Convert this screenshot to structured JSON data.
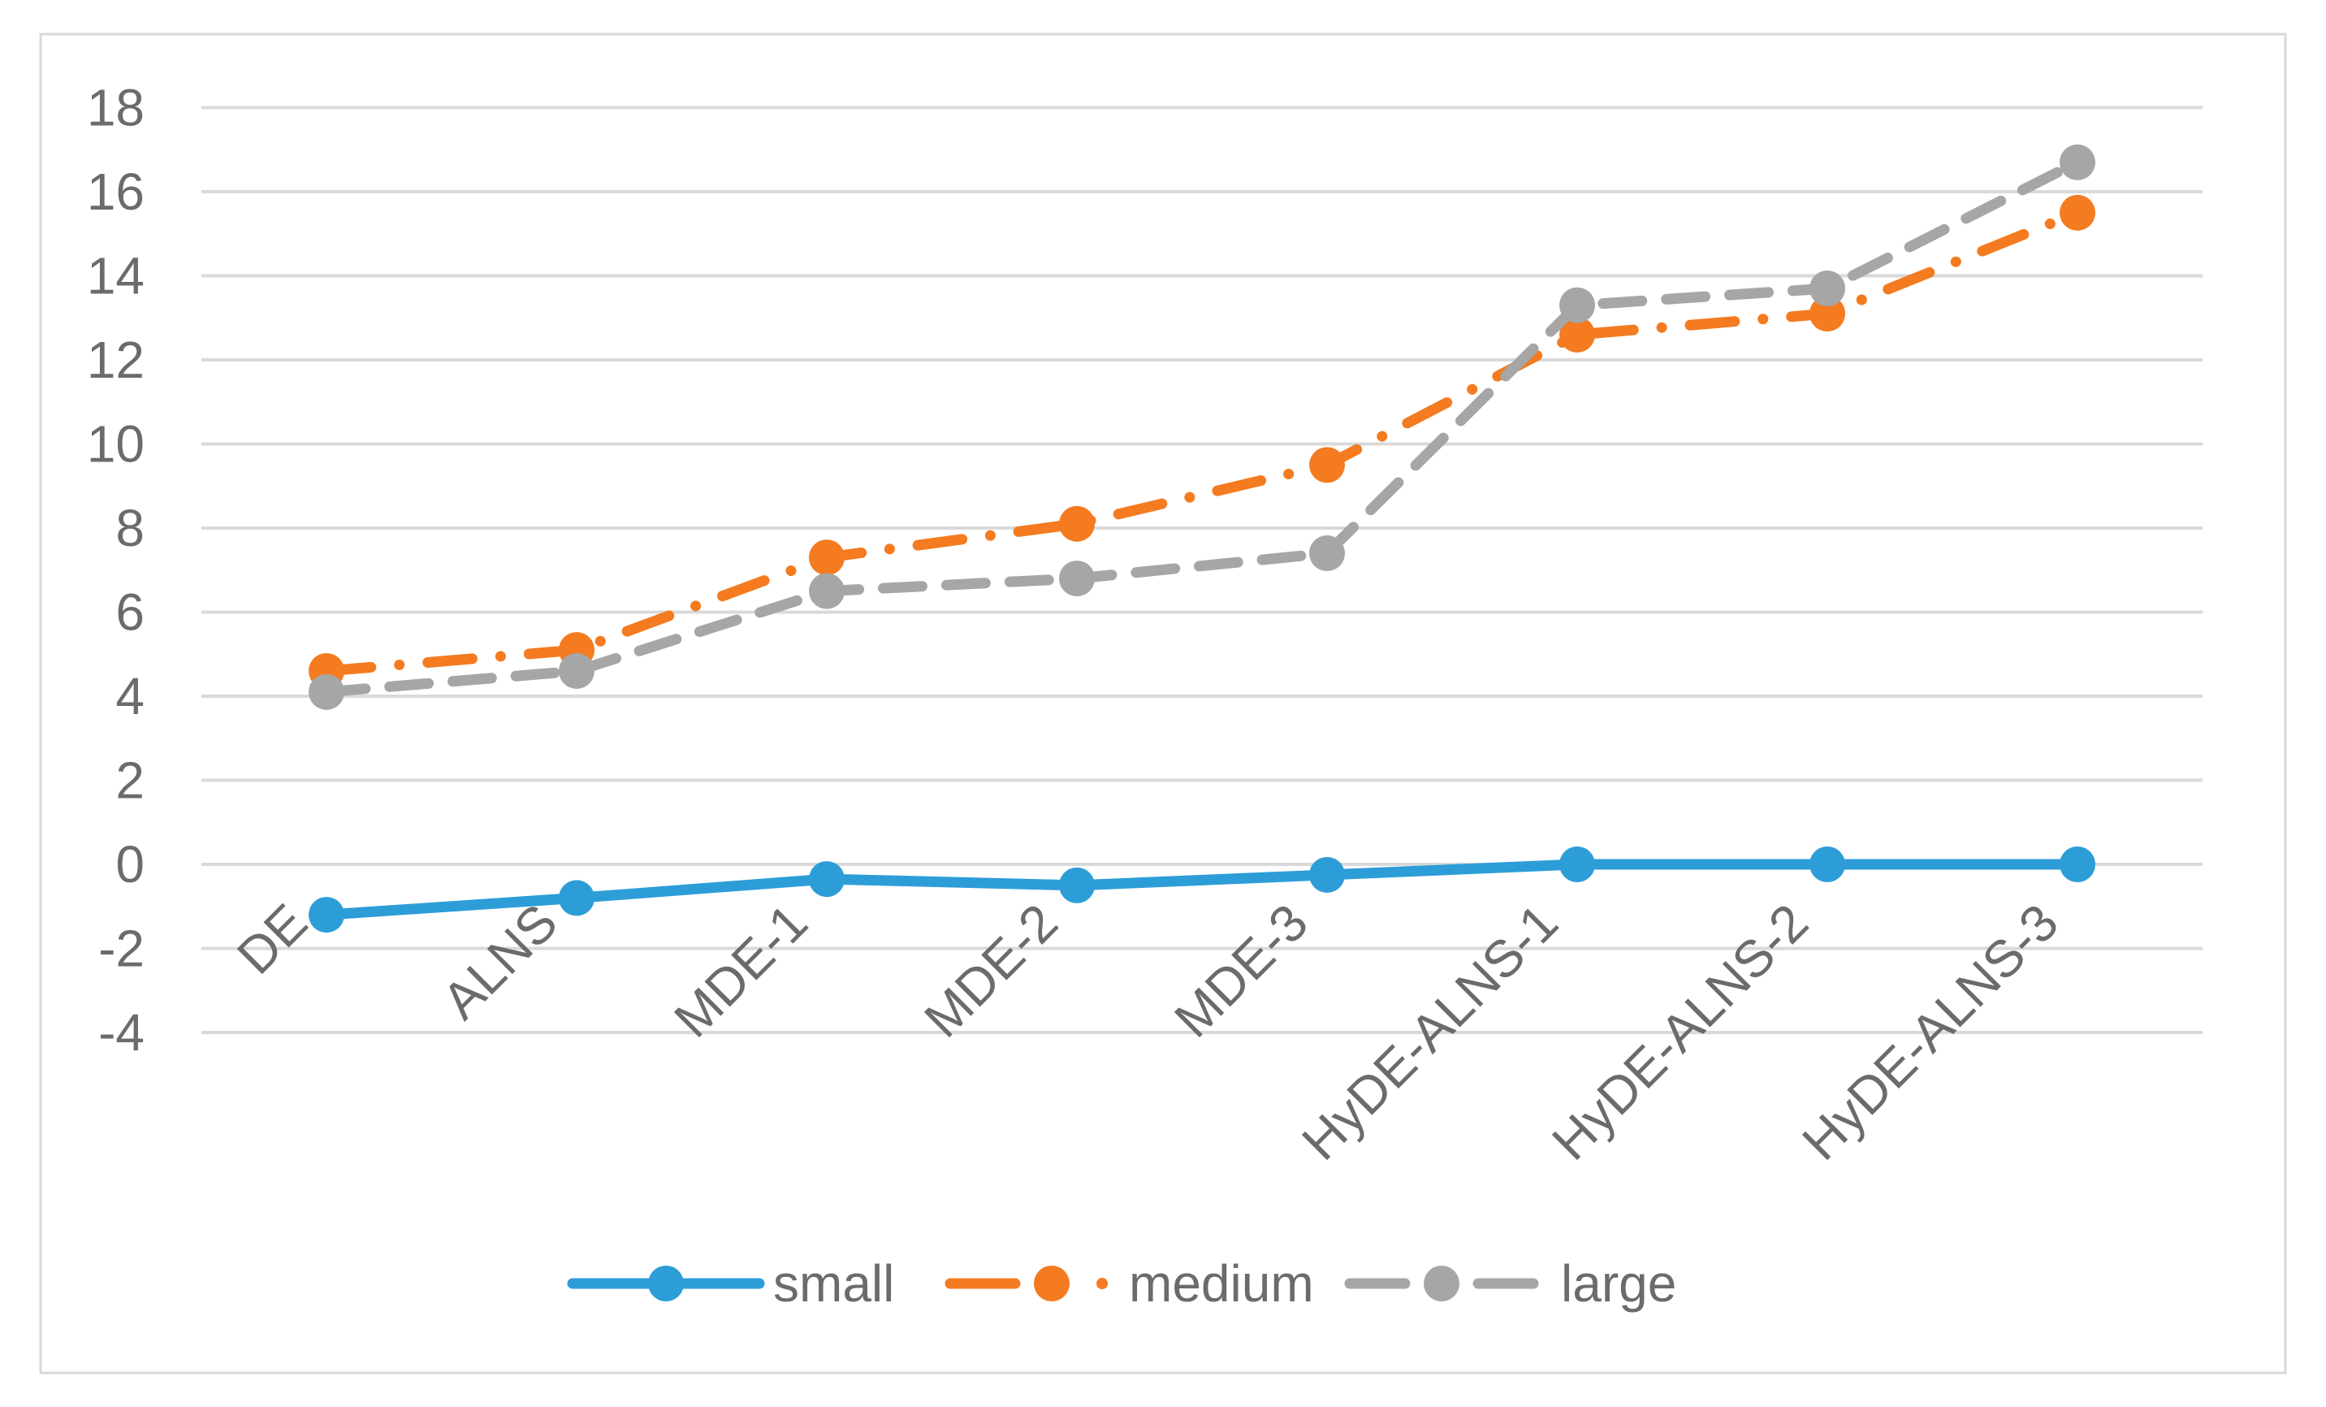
{
  "chart_data": {
    "type": "line",
    "title": "",
    "xlabel": "",
    "ylabel": "",
    "categories": [
      "DE",
      "ALNS",
      "MDE-1",
      "MDE-2",
      "MDE-3",
      "HyDE-ALNS-1",
      "HyDE-ALNS-2",
      "HyDE-ALNS-3"
    ],
    "series": [
      {
        "name": "small",
        "color": "#2D9DD8",
        "style": "solid",
        "values": [
          -1.2,
          -0.8,
          -0.35,
          -0.5,
          -0.25,
          0.0,
          0.0,
          0.0
        ]
      },
      {
        "name": "medium",
        "color": "#F47B20",
        "style": "dash-dot",
        "values": [
          4.6,
          5.1,
          7.3,
          8.1,
          9.5,
          12.6,
          13.1,
          15.5
        ]
      },
      {
        "name": "large",
        "color": "#A6A6A6",
        "style": "dash",
        "values": [
          4.1,
          4.6,
          6.5,
          6.8,
          7.4,
          13.3,
          13.7,
          16.7
        ]
      }
    ],
    "ylim": [
      -4,
      18
    ],
    "ytick_step": 2,
    "yticks": [
      "18",
      "16",
      "14",
      "12",
      "10",
      "8",
      "6",
      "4",
      "2",
      "0",
      "-2",
      "-4"
    ],
    "grid": true,
    "legend_position": "bottom-center",
    "legend": [
      "small",
      "medium",
      "large"
    ]
  },
  "colors": {
    "background": "#FFFFFF",
    "chart_border": "#D9D9D9",
    "gridline": "#D9D9D9",
    "axis_text": "#6B6B6B",
    "legend_text": "#6B6B6B"
  }
}
